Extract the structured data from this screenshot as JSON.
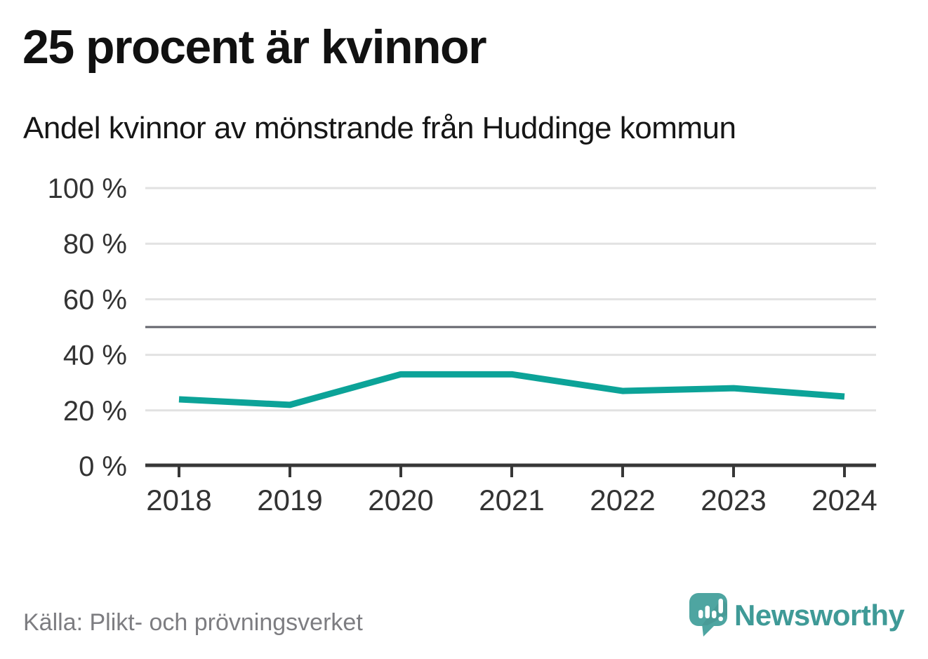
{
  "chart_data": {
    "type": "line",
    "title": "25 procent är kvinnor",
    "subtitle": "Andel kvinnor av mönstrande från Huddinge kommun",
    "x": [
      "2018",
      "2019",
      "2020",
      "2021",
      "2022",
      "2023",
      "2024"
    ],
    "series": [
      {
        "name": "Andel kvinnor",
        "values": [
          24,
          22,
          33,
          33,
          27,
          28,
          25
        ]
      }
    ],
    "ylim": [
      0,
      100
    ],
    "yticks": [
      0,
      20,
      40,
      60,
      80,
      100
    ],
    "ytick_format": "{v} %",
    "reference_line": {
      "value": 50
    },
    "grid": true,
    "legend": "none",
    "colors": {
      "line": "#0ca398",
      "grid": "#e2e2e2",
      "reference": "#63646c",
      "axis": "#373737",
      "tick_label": "#333333"
    }
  },
  "footer": {
    "source": "Källa: Plikt- och prövningsverket",
    "brand": "Newsworthy"
  }
}
